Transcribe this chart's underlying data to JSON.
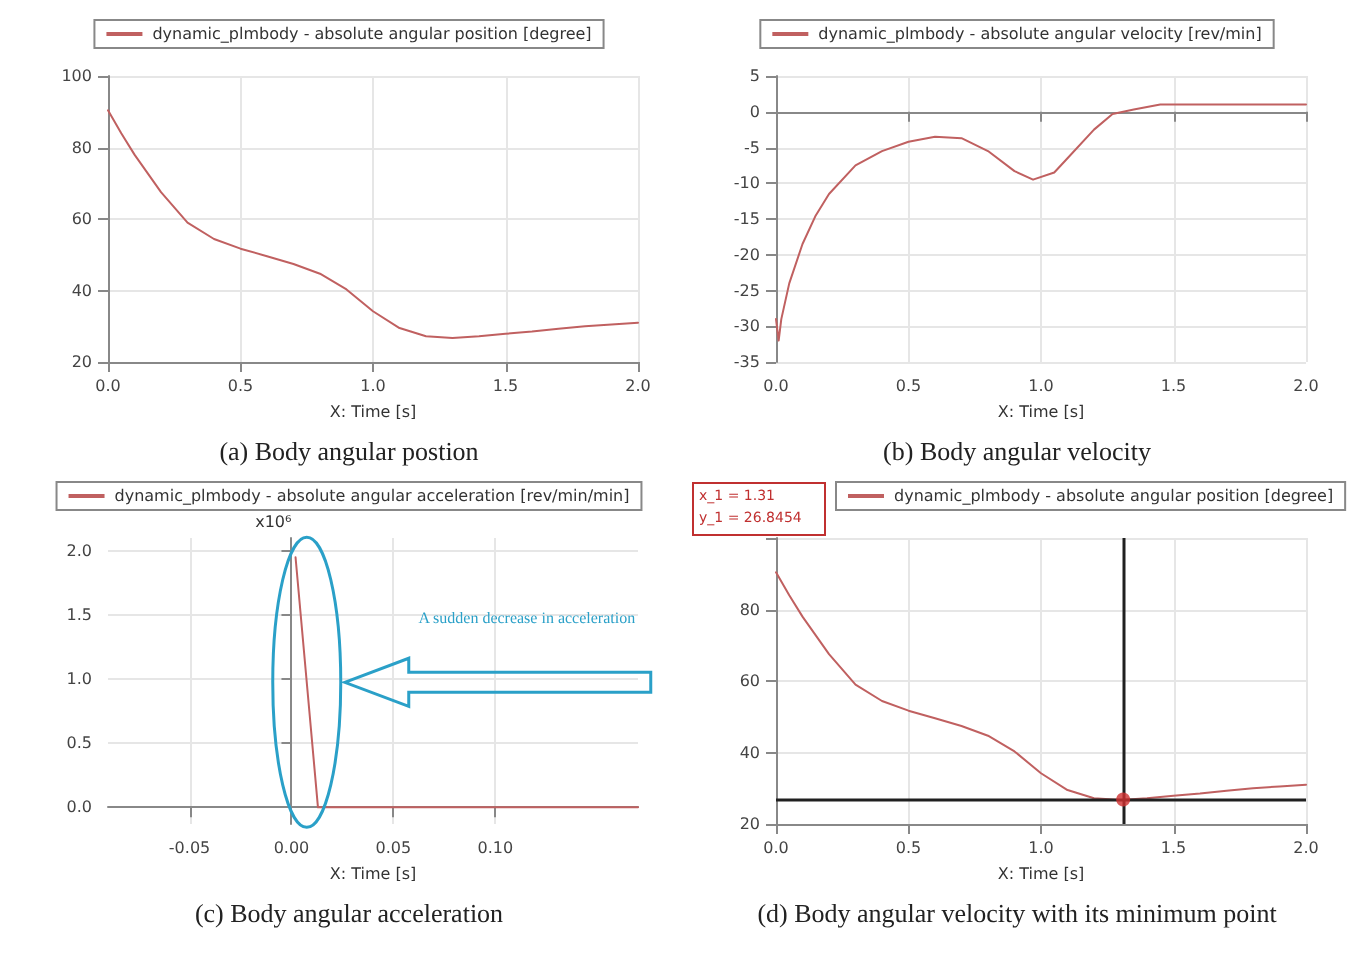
{
  "chart_data": [
    {
      "type": "line",
      "title": "(a) Body angular postion",
      "xlabel": "X: Time [s]",
      "legend": "top",
      "grid": true,
      "marker": "none",
      "line_style": "solid",
      "xlim": [
        0,
        2
      ],
      "xticks": [
        {
          "value": 0,
          "label": "0.0"
        },
        {
          "value": 0.5,
          "label": "0.5"
        },
        {
          "value": 1,
          "label": "1.0"
        },
        {
          "value": 1.5,
          "label": "1.5"
        },
        {
          "value": 2,
          "label": "2.0"
        }
      ],
      "ylim": [
        20,
        100
      ],
      "yticks": [
        20,
        40,
        60,
        80,
        100
      ],
      "series": [
        {
          "name": "dynamic_plmbody - absolute angular position [degree]",
          "color": "#c06060",
          "x": [
            0,
            0.05,
            0.1,
            0.2,
            0.3,
            0.4,
            0.5,
            0.6,
            0.7,
            0.8,
            0.9,
            1.0,
            1.1,
            1.2,
            1.3,
            1.4,
            1.5,
            1.6,
            1.7,
            1.8,
            1.9,
            2.0
          ],
          "values": [
            90.4,
            84,
            78,
            67.5,
            59,
            54.4,
            51.7,
            49.6,
            47.4,
            44.7,
            40.3,
            34.2,
            29.5,
            27.2,
            26.7,
            27.2,
            27.9,
            28.5,
            29.3,
            30,
            30.5,
            31
          ]
        }
      ]
    },
    {
      "type": "line",
      "title": "(b) Body angular velocity",
      "xlabel": "X: Time [s]",
      "legend": "top",
      "grid": true,
      "marker": "none",
      "line_style": "solid",
      "xlim": [
        0,
        2
      ],
      "xticks": [
        {
          "value": 0,
          "label": "0.0"
        },
        {
          "value": 0.5,
          "label": "0.5"
        },
        {
          "value": 1,
          "label": "1.0"
        },
        {
          "value": 1.5,
          "label": "1.5"
        },
        {
          "value": 2,
          "label": "2.0"
        }
      ],
      "ylim": [
        -35,
        5
      ],
      "yticks": [
        -35,
        -30,
        -25,
        -20,
        -15,
        -10,
        -5,
        0,
        5
      ],
      "series": [
        {
          "name": "dynamic_plmbody - absolute angular velocity [rev/min]",
          "color": "#c06060",
          "x": [
            0,
            0.01,
            0.02,
            0.05,
            0.1,
            0.15,
            0.2,
            0.3,
            0.4,
            0.5,
            0.6,
            0.7,
            0.8,
            0.9,
            0.97,
            1.05,
            1.1,
            1.2,
            1.27,
            1.35,
            1.45,
            1.6,
            2.0
          ],
          "values": [
            -29,
            -32,
            -29,
            -24,
            -18.5,
            -14.5,
            -11.5,
            -7.5,
            -5.5,
            -4.2,
            -3.5,
            -3.7,
            -5.5,
            -8.3,
            -9.5,
            -8.5,
            -6.5,
            -2.5,
            -0.3,
            0.3,
            1,
            1,
            1
          ]
        }
      ]
    },
    {
      "type": "line",
      "title": "(c) Body angular acceleration",
      "xlabel": "X: Time [s]",
      "ylabel": "x10⁶",
      "legend": "top",
      "grid": true,
      "marker": "none",
      "line_style": "solid",
      "xlim": [
        -0.09,
        0.17
      ],
      "xticks": [
        {
          "value": -0.05,
          "label": "-0.05"
        },
        {
          "value": 0,
          "label": "0.00"
        },
        {
          "value": 0.05,
          "label": "0.05"
        },
        {
          "value": 0.1,
          "label": "0.10"
        }
      ],
      "ylim": [
        -0.13,
        2.1
      ],
      "yticks": [
        {
          "value": 0,
          "label": "0.0"
        },
        {
          "value": 0.5,
          "label": "0.5"
        },
        {
          "value": 1,
          "label": "1.0"
        },
        {
          "value": 1.5,
          "label": "1.5"
        },
        {
          "value": 2,
          "label": "2.0"
        }
      ],
      "annotations": [
        {
          "text": "A sudden decrease in acceleration"
        }
      ],
      "series": [
        {
          "name": "dynamic_plmbody - absolute angular acceleration [rev/min/min]",
          "color": "#c06060",
          "x": [
            0.002,
            0.013,
            0.17
          ],
          "values": [
            1.95,
            0,
            0
          ]
        }
      ]
    },
    {
      "type": "line",
      "title": "(d) Body angular velocity with its minimum point",
      "xlabel": "X: Time [s]",
      "legend": "top",
      "grid": true,
      "marker": "none",
      "line_style": "solid",
      "xlim": [
        0,
        2
      ],
      "xticks": [
        {
          "value": 0,
          "label": "0.0"
        },
        {
          "value": 0.5,
          "label": "0.5"
        },
        {
          "value": 1,
          "label": "1.0"
        },
        {
          "value": 1.5,
          "label": "1.5"
        },
        {
          "value": 2,
          "label": "2.0"
        }
      ],
      "ylim": [
        20,
        100
      ],
      "yticks": [
        20,
        40,
        60,
        80,
        {
          "value": 100,
          "label": null
        }
      ],
      "annotations": [
        "x_1 = 1.31",
        "y_1 = 26.8454"
      ],
      "ref_lines": [
        {
          "axis": "x",
          "value": 1.31,
          "color": "#202020"
        },
        {
          "axis": "y",
          "value": 26.8454,
          "color": "#202020"
        }
      ],
      "series": [
        {
          "name": "dynamic_plmbody - absolute angular position [degree]",
          "color": "#c06060",
          "x": [
            0,
            0.05,
            0.1,
            0.2,
            0.3,
            0.4,
            0.5,
            0.6,
            0.7,
            0.8,
            0.9,
            1.0,
            1.1,
            1.2,
            1.3,
            1.4,
            1.5,
            1.6,
            1.7,
            1.8,
            1.9,
            2.0
          ],
          "values": [
            90.4,
            84,
            78,
            67.5,
            59,
            54.4,
            51.7,
            49.6,
            47.4,
            44.7,
            40.3,
            34.2,
            29.5,
            27.2,
            26.7,
            27.2,
            27.9,
            28.5,
            29.3,
            30,
            30.5,
            31
          ]
        },
        {
          "type": "scatter",
          "marker": "circle",
          "color": "#d03030",
          "x": [
            1.31
          ],
          "values": [
            26.8454
          ]
        }
      ]
    }
  ]
}
